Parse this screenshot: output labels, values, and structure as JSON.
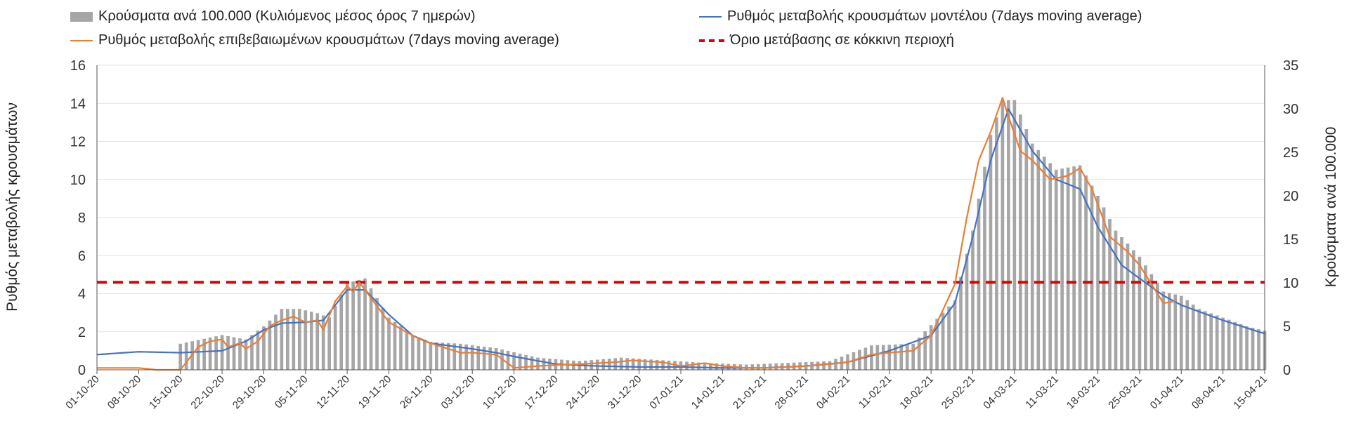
{
  "chart_data": {
    "type": "bar+line",
    "title": "",
    "legend": {
      "placement": "top",
      "items": [
        {
          "label": "Κρούσματα ανά 100.000 (Κυλιόμενος μέσος όρος 7 ημερών)",
          "kind": "bar",
          "color": "#a6a6a6"
        },
        {
          "label": "Ρυθμός μεταβολής κρουσμάτων μοντέλου (7days moving average)",
          "kind": "line",
          "color": "#4472c4"
        },
        {
          "label": "Ρυθμός μεταβολής επιβεβαιωμένων κρουσμάτων (7days moving average)",
          "kind": "line",
          "color": "#ed7d31"
        },
        {
          "label": "Όριο μετάβασης σε κόκκινη περιοχή",
          "kind": "dashed",
          "color": "#e00000"
        }
      ]
    },
    "ylabel_left": "Ρυθμός μεταβολής κρουσμάτων",
    "ylabel_right": "Κρούσματα ανά 100.000",
    "ylim_left": [
      0,
      16
    ],
    "ylim_right": [
      0,
      35
    ],
    "yticks_left": [
      "0",
      "2",
      "4",
      "6",
      "8",
      "10",
      "12",
      "14",
      "16"
    ],
    "yticks_right": [
      "0",
      "5",
      "10",
      "15",
      "20",
      "25",
      "30",
      "35"
    ],
    "grid": true,
    "x_start": "2020-10-01",
    "x_end": "2021-04-15",
    "xticks": [
      "01-10-20",
      "08-10-20",
      "15-10-20",
      "22-10-20",
      "29-10-20",
      "05-11-20",
      "12-11-20",
      "19-11-20",
      "26-11-20",
      "03-12-20",
      "10-12-20",
      "17-12-20",
      "24-12-20",
      "31-12-20",
      "07-01-21",
      "14-01-21",
      "21-01-21",
      "28-01-21",
      "04-02-21",
      "11-02-21",
      "18-02-21",
      "25-02-21",
      "04-03-21",
      "11-03-21",
      "18-03-21",
      "25-03-21",
      "01-04-21",
      "08-04-21",
      "15-04-21"
    ],
    "red_threshold_left": 4.6,
    "series_bars": {
      "name": "Κρούσματα ανά 100.000 (Κυλιόμενος μέσος όρος 7 ημερών)",
      "axis": "right",
      "points": [
        [
          "2020-10-15",
          3
        ],
        [
          "2020-10-22",
          4
        ],
        [
          "2020-10-26",
          3.5
        ],
        [
          "2020-10-29",
          5
        ],
        [
          "2020-11-01",
          7
        ],
        [
          "2020-11-04",
          7
        ],
        [
          "2020-11-07",
          6.5
        ],
        [
          "2020-11-09",
          6
        ],
        [
          "2020-11-12",
          10
        ],
        [
          "2020-11-15",
          10.5
        ],
        [
          "2020-11-19",
          6
        ],
        [
          "2020-11-23",
          4
        ],
        [
          "2020-11-26",
          3.2
        ],
        [
          "2020-12-01",
          3
        ],
        [
          "2020-12-07",
          2.5
        ],
        [
          "2020-12-14",
          1.4
        ],
        [
          "2020-12-21",
          1
        ],
        [
          "2020-12-28",
          1.4
        ],
        [
          "2021-01-04",
          1.1
        ],
        [
          "2021-01-11",
          0.8
        ],
        [
          "2021-01-18",
          0.6
        ],
        [
          "2021-01-25",
          0.8
        ],
        [
          "2021-02-01",
          1
        ],
        [
          "2021-02-08",
          2.8
        ],
        [
          "2021-02-15",
          3
        ],
        [
          "2021-02-22",
          8
        ],
        [
          "2021-02-25",
          16
        ],
        [
          "2021-02-28",
          27
        ],
        [
          "2021-03-02",
          31
        ],
        [
          "2021-03-04",
          31
        ],
        [
          "2021-03-07",
          26
        ],
        [
          "2021-03-11",
          23
        ],
        [
          "2021-03-15",
          23.5
        ],
        [
          "2021-03-18",
          20
        ],
        [
          "2021-03-21",
          16
        ],
        [
          "2021-03-25",
          13
        ],
        [
          "2021-03-29",
          9
        ],
        [
          "2021-04-01",
          8.5
        ],
        [
          "2021-04-04",
          7
        ],
        [
          "2021-04-08",
          6
        ],
        [
          "2021-04-12",
          5
        ],
        [
          "2021-04-15",
          4.5
        ]
      ]
    },
    "series_model": {
      "name": "Ρυθμός μεταβολής κρουσμάτων μοντέλου (7days moving average)",
      "axis": "left",
      "points": [
        [
          "2020-10-01",
          0.8
        ],
        [
          "2020-10-08",
          0.95
        ],
        [
          "2020-10-15",
          0.9
        ],
        [
          "2020-10-22",
          1
        ],
        [
          "2020-10-26",
          1.5
        ],
        [
          "2020-10-29",
          2.1
        ],
        [
          "2020-11-01",
          2.45
        ],
        [
          "2020-11-05",
          2.5
        ],
        [
          "2020-11-08",
          2.6
        ],
        [
          "2020-11-12",
          4.2
        ],
        [
          "2020-11-15",
          4.2
        ],
        [
          "2020-11-19",
          2.9
        ],
        [
          "2020-11-23",
          1.8
        ],
        [
          "2020-11-26",
          1.4
        ],
        [
          "2020-12-03",
          1.1
        ],
        [
          "2020-12-07",
          0.9
        ],
        [
          "2020-12-10",
          0.7
        ],
        [
          "2020-12-17",
          0.3
        ],
        [
          "2020-12-24",
          0.2
        ],
        [
          "2020-12-31",
          0.15
        ],
        [
          "2021-01-07",
          0.15
        ],
        [
          "2021-01-14",
          0.1
        ],
        [
          "2021-01-21",
          0.1
        ],
        [
          "2021-01-28",
          0.2
        ],
        [
          "2021-02-04",
          0.4
        ],
        [
          "2021-02-11",
          1
        ],
        [
          "2021-02-18",
          1.8
        ],
        [
          "2021-02-22",
          3.5
        ],
        [
          "2021-02-25",
          7
        ],
        [
          "2021-02-28",
          11
        ],
        [
          "2021-03-03",
          13.7
        ],
        [
          "2021-03-07",
          11.5
        ],
        [
          "2021-03-11",
          10
        ],
        [
          "2021-03-15",
          9.5
        ],
        [
          "2021-03-18",
          7.5
        ],
        [
          "2021-03-22",
          5.5
        ],
        [
          "2021-03-25",
          4.8
        ],
        [
          "2021-03-29",
          3.9
        ],
        [
          "2021-04-01",
          3.4
        ],
        [
          "2021-04-08",
          2.6
        ],
        [
          "2021-04-15",
          1.9
        ]
      ]
    },
    "series_observed": {
      "name": "Ρυθμός μεταβολής επιβεβαιωμένων κρουσμάτων (7days moving average)",
      "axis": "left",
      "points": [
        [
          "2020-10-01",
          0.1
        ],
        [
          "2020-10-04",
          0.1
        ],
        [
          "2020-10-08",
          0.1
        ],
        [
          "2020-10-11",
          0
        ],
        [
          "2020-10-15",
          0
        ],
        [
          "2020-10-18",
          1.2
        ],
        [
          "2020-10-20",
          1.5
        ],
        [
          "2020-10-22",
          1.6
        ],
        [
          "2020-10-23",
          1.2
        ],
        [
          "2020-10-25",
          1.4
        ],
        [
          "2020-10-26",
          1.1
        ],
        [
          "2020-10-28",
          1.5
        ],
        [
          "2020-10-30",
          2.3
        ],
        [
          "2020-11-01",
          2.6
        ],
        [
          "2020-11-03",
          2.8
        ],
        [
          "2020-11-05",
          2.5
        ],
        [
          "2020-11-07",
          2.6
        ],
        [
          "2020-11-08",
          2.1
        ],
        [
          "2020-11-10",
          3.6
        ],
        [
          "2020-11-12",
          4.4
        ],
        [
          "2020-11-13",
          4.1
        ],
        [
          "2020-11-14",
          4.6
        ],
        [
          "2020-11-15",
          4.2
        ],
        [
          "2020-11-19",
          2.5
        ],
        [
          "2020-11-23",
          1.8
        ],
        [
          "2020-11-25",
          1.5
        ],
        [
          "2020-11-28",
          1.2
        ],
        [
          "2020-12-01",
          0.9
        ],
        [
          "2020-12-03",
          0.9
        ],
        [
          "2020-12-07",
          0.8
        ],
        [
          "2020-12-10",
          0.1
        ],
        [
          "2020-12-14",
          0.2
        ],
        [
          "2020-12-17",
          0.25
        ],
        [
          "2020-12-21",
          0.3
        ],
        [
          "2020-12-24",
          0.35
        ],
        [
          "2020-12-27",
          0.4
        ],
        [
          "2020-12-30",
          0.5
        ],
        [
          "2021-01-01",
          0.45
        ],
        [
          "2021-01-04",
          0.4
        ],
        [
          "2021-01-07",
          0.2
        ],
        [
          "2021-01-11",
          0.35
        ],
        [
          "2021-01-14",
          0.2
        ],
        [
          "2021-01-18",
          0.1
        ],
        [
          "2021-01-21",
          0.1
        ],
        [
          "2021-01-25",
          0.15
        ],
        [
          "2021-01-28",
          0.2
        ],
        [
          "2021-02-01",
          0.3
        ],
        [
          "2021-02-04",
          0.4
        ],
        [
          "2021-02-08",
          0.8
        ],
        [
          "2021-02-11",
          0.9
        ],
        [
          "2021-02-15",
          1.0
        ],
        [
          "2021-02-18",
          1.8
        ],
        [
          "2021-02-22",
          4.5
        ],
        [
          "2021-02-24",
          8
        ],
        [
          "2021-02-26",
          11
        ],
        [
          "2021-02-28",
          12.5
        ],
        [
          "2021-03-02",
          14.3
        ],
        [
          "2021-03-03",
          13.3
        ],
        [
          "2021-03-05",
          11.5
        ],
        [
          "2021-03-07",
          11
        ],
        [
          "2021-03-10",
          10
        ],
        [
          "2021-03-13",
          10.2
        ],
        [
          "2021-03-15",
          10.6
        ],
        [
          "2021-03-17",
          9.5
        ],
        [
          "2021-03-20",
          7
        ],
        [
          "2021-03-23",
          6.2
        ],
        [
          "2021-03-25",
          5.5
        ],
        [
          "2021-03-27",
          4.5
        ],
        [
          "2021-03-29",
          3.5
        ],
        [
          "2021-03-31",
          3.6
        ]
      ]
    }
  }
}
